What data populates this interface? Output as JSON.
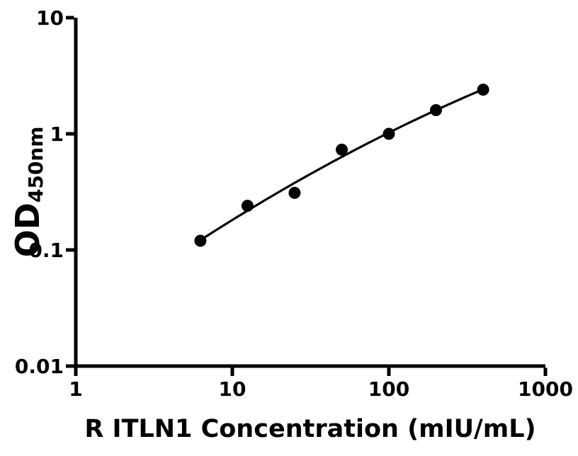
{
  "figure": {
    "background": "#ffffff",
    "foreground": "#000000"
  },
  "chart_data": {
    "type": "scatter",
    "title": "",
    "xlabel": "R ITLN1 Concentration (mIU/mL)",
    "ylabel_main": "OD",
    "ylabel_sub": "450nm",
    "x_scale": "log",
    "y_scale": "log",
    "xlim": [
      1,
      1000
    ],
    "ylim": [
      0.01,
      10
    ],
    "grid": false,
    "legend": null,
    "x": [
      6.25,
      12.5,
      25,
      50,
      100,
      200,
      400
    ],
    "y": [
      0.12,
      0.24,
      0.31,
      0.73,
      1.0,
      1.6,
      2.4
    ],
    "x_ticks": [
      {
        "value": 1,
        "label": "1"
      },
      {
        "value": 10,
        "label": "10"
      },
      {
        "value": 100,
        "label": "100"
      },
      {
        "value": 1000,
        "label": "1000"
      }
    ],
    "y_ticks": [
      {
        "value": 0.01,
        "label": "0.01"
      },
      {
        "value": 0.1,
        "label": "0.1"
      },
      {
        "value": 1,
        "label": "1"
      },
      {
        "value": 10,
        "label": "10"
      }
    ],
    "fit_curve": "smooth fit through standard points (log-log)",
    "marker_color": "#000000",
    "line_color": "#000000"
  }
}
